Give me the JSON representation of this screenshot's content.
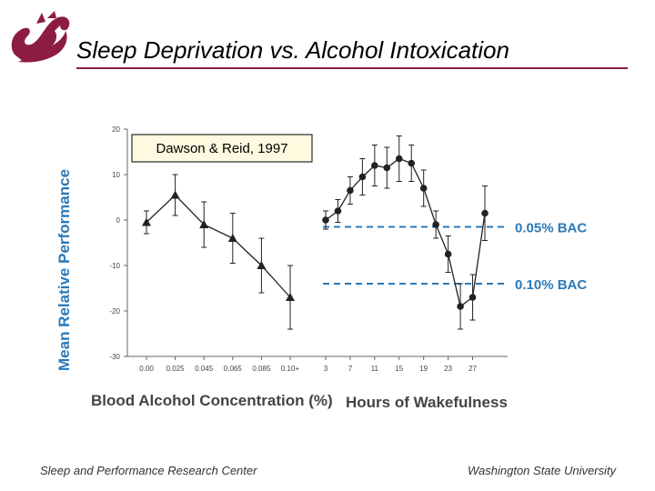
{
  "slide": {
    "title": "Sleep Deprivation vs. Alcohol Intoxication",
    "footer_left": "Sleep and Performance Research Center",
    "footer_right": "Washington State University",
    "accent_color": "#8c1d40",
    "logo_icon": "wsu-cougar-logo"
  },
  "chart_data": {
    "type": "line",
    "citation": "Dawson & Reid, 1997",
    "ylabel": "Mean Relative Performance",
    "ylim": [
      -30,
      20
    ],
    "yticks": [
      "20",
      "10",
      "0",
      "-10",
      "-20",
      "-30"
    ],
    "y_tick_values": [
      20,
      10,
      0,
      -10,
      -20,
      -30
    ],
    "grid": false,
    "panels": [
      {
        "xlabel": "Blood Alcohol Concentration (%)",
        "marker": "triangle",
        "categories": [
          "0.00",
          "0.025",
          "0.045",
          "0.065",
          "0.085",
          "0.10+"
        ],
        "values": [
          -0.5,
          5.5,
          -1,
          -4,
          -10,
          -17
        ],
        "errors": [
          2.5,
          4.5,
          5,
          5.5,
          6,
          7
        ]
      },
      {
        "xlabel": "Hours of Wakefulness",
        "marker": "circle",
        "x": [
          3,
          5,
          7,
          9,
          11,
          13,
          15,
          17,
          19,
          21,
          23,
          25,
          27,
          29
        ],
        "x_tick_labels": [
          "3",
          "7",
          "11",
          "15",
          "19",
          "23",
          "27"
        ],
        "x_tick_values": [
          3,
          7,
          11,
          15,
          19,
          23,
          27
        ],
        "values": [
          0,
          2,
          6.5,
          9.5,
          12,
          11.5,
          13.5,
          12.5,
          7,
          -1,
          -7.5,
          -19,
          -17,
          1.5
        ],
        "errors": [
          2,
          2.5,
          3,
          4,
          4.5,
          4.5,
          5,
          4,
          4,
          3,
          4,
          5,
          5,
          6
        ]
      }
    ],
    "reference_lines": [
      {
        "label": "0.05% BAC",
        "value": -1.5
      },
      {
        "label": "0.10% BAC",
        "value": -14
      }
    ],
    "colors": {
      "data": "#222222",
      "axis_text": "#444444",
      "ylabel": "#2b79b7",
      "reference": "#2b79b7",
      "citation_box": "#fff9e0"
    }
  }
}
